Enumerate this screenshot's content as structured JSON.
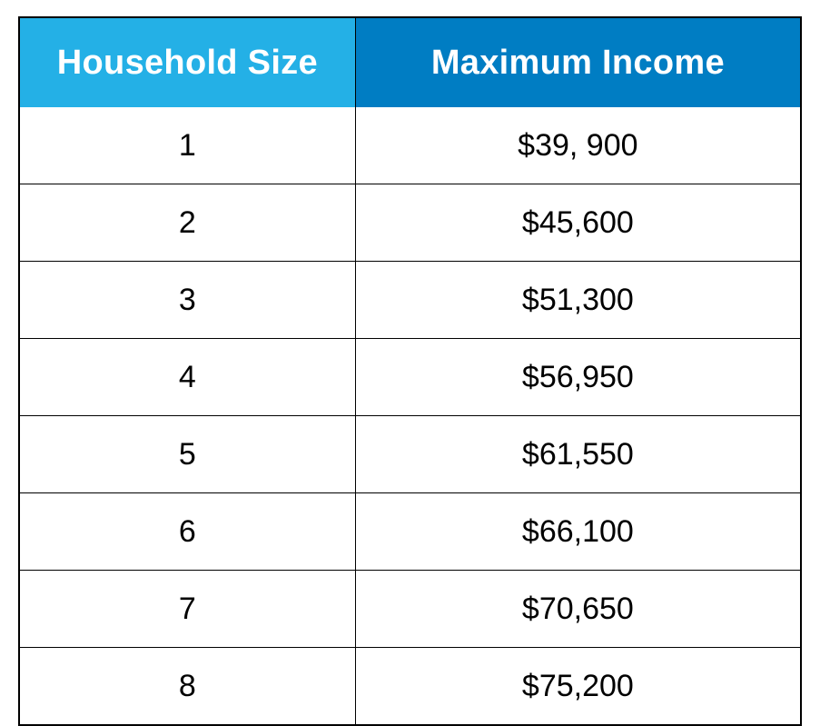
{
  "table": {
    "type": "table",
    "header_colors": {
      "household_size_bg": "#24b0e6",
      "maximum_income_bg": "#007dc3",
      "header_text_color": "#ffffff"
    },
    "body_colors": {
      "cell_bg": "#ffffff",
      "cell_text": "#000000",
      "border_color": "#000000"
    },
    "fonts": {
      "header_fontsize_pt": 28,
      "header_fontweight": "bold",
      "body_fontsize_pt": 25,
      "body_fontweight": "normal",
      "family": "Helvetica"
    },
    "column_widths_pct": [
      43,
      57
    ],
    "columns": [
      "Household Size",
      "Maximum Income"
    ],
    "rows": [
      {
        "size": "1",
        "income": "$39, 900"
      },
      {
        "size": "2",
        "income": "$45,600"
      },
      {
        "size": "3",
        "income": "$51,300"
      },
      {
        "size": "4",
        "income": "$56,950"
      },
      {
        "size": "5",
        "income": "$61,550"
      },
      {
        "size": "6",
        "income": "$66,100"
      },
      {
        "size": "7",
        "income": "$70,650"
      },
      {
        "size": "8",
        "income": "$75,200"
      }
    ]
  }
}
